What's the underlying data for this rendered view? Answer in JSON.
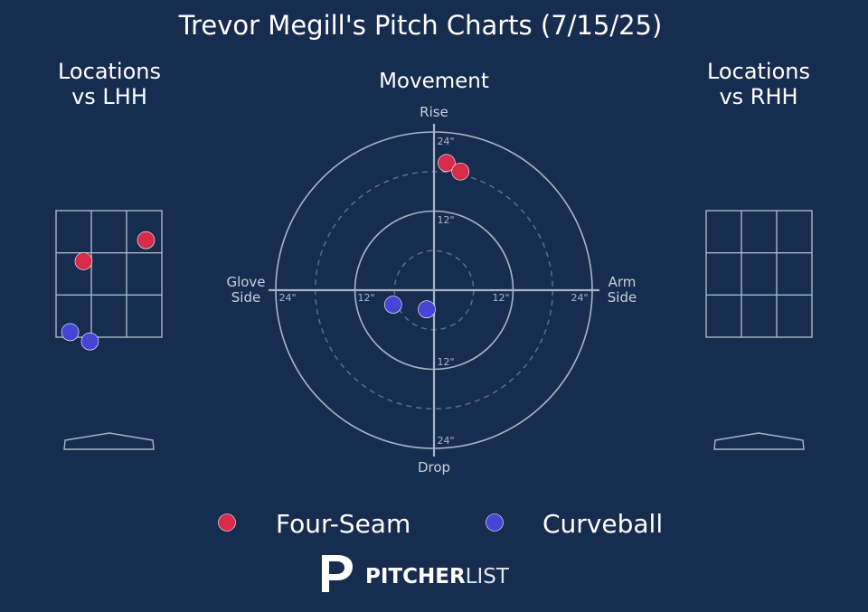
{
  "title": "Trevor Megill's Pitch Charts (7/15/25)",
  "colors": {
    "background": "#172d4f",
    "four_seam": "#d62c4a",
    "curveball": "#4545d6",
    "grid": "#a8b4c8",
    "ring_dashed": "#5a6d8c"
  },
  "panels": {
    "lhh_title_line1": "Locations",
    "lhh_title_line2": "vs LHH",
    "movement_title": "Movement",
    "rhh_title_line1": "Locations",
    "rhh_title_line2": "vs RHH"
  },
  "movement_axes": {
    "top": "Rise",
    "bottom": "Drop",
    "left_line1": "Glove",
    "left_line2": "Side",
    "right_line1": "Arm",
    "right_line2": "Side",
    "ring_label_24": "24\"",
    "ring_label_12": "12\""
  },
  "legend": [
    {
      "label": "Four-Seam",
      "color": "#d62c4a"
    },
    {
      "label": "Curveball",
      "color": "#4545d6"
    }
  ],
  "brand": {
    "name_bold": "PITCHER",
    "name_light": "LIST"
  },
  "chart_data": [
    {
      "type": "scatter",
      "name": "Locations vs LHH",
      "zone_cols": 3,
      "zone_rows": 3,
      "series": [
        {
          "name": "Four-Seam",
          "points": [
            {
              "col": 2.55,
              "row": 0.7
            },
            {
              "col": 0.78,
              "row": 1.2
            }
          ]
        },
        {
          "name": "Curveball",
          "points": [
            {
              "col": 0.4,
              "row": 2.88
            },
            {
              "col": 0.96,
              "row": 3.1
            }
          ]
        }
      ]
    },
    {
      "type": "scatter",
      "name": "Movement",
      "xlim": [
        -24,
        24
      ],
      "ylim": [
        -24,
        24
      ],
      "rings": [
        6,
        12,
        18,
        24
      ],
      "series": [
        {
          "name": "Four-Seam",
          "points": [
            {
              "x": 1.9,
              "y": 19.3
            },
            {
              "x": 4.0,
              "y": 18.0
            }
          ]
        },
        {
          "name": "Curveball",
          "points": [
            {
              "x": -6.2,
              "y": -2.2
            },
            {
              "x": -1.1,
              "y": -2.9
            }
          ]
        }
      ]
    },
    {
      "type": "scatter",
      "name": "Locations vs RHH",
      "zone_cols": 3,
      "zone_rows": 3,
      "series": []
    }
  ]
}
